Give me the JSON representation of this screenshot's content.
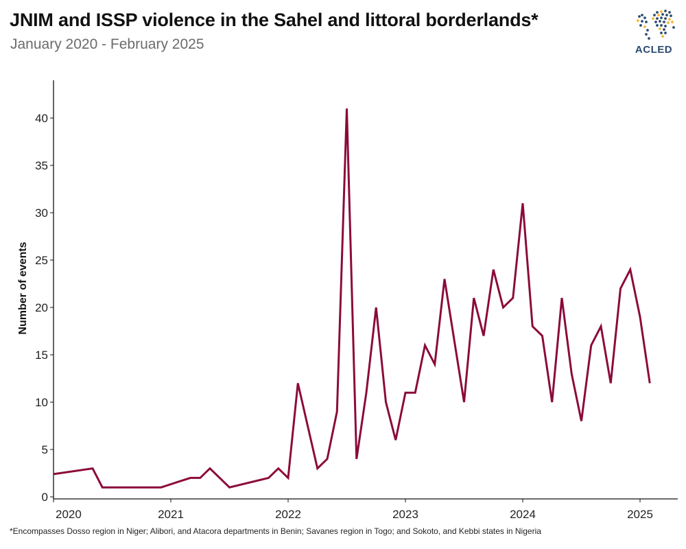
{
  "header": {
    "title": "JNIM and ISSP violence in the Sahel and littoral borderlands*",
    "subtitle": "January 2020 - February 2025"
  },
  "logo": {
    "text": "ACLED",
    "icon": "globe-dots-icon",
    "colors": {
      "primary": "#2b4a6f",
      "accent": "#f2b634"
    }
  },
  "footnote": "*Encompasses Dosso region in Niger; Alibori, and Atacora departments in Benin; Savanes region in Togo; and Sokoto, and Kebbi states in Nigeria",
  "chart_data": {
    "type": "line",
    "title": "JNIM and ISSP violence in the Sahel and littoral borderlands*",
    "subtitle": "January 2020 - February 2025",
    "xlabel": "",
    "ylabel": "Number of events",
    "ylim": [
      -1,
      43
    ],
    "xlim": [
      "2020-01",
      "2025-04"
    ],
    "grid": false,
    "line_color": "#8b0a3a",
    "x_ticks": [
      "2020",
      "2021",
      "2022",
      "2023",
      "2024",
      "2025"
    ],
    "y_ticks": [
      0,
      5,
      10,
      15,
      20,
      25,
      30,
      35,
      40
    ],
    "series": [
      {
        "name": "Number of events",
        "points": [
          {
            "x": "2020-01",
            "y": 2.4
          },
          {
            "x": "2020-05",
            "y": 3
          },
          {
            "x": "2020-06",
            "y": 1
          },
          {
            "x": "2020-12",
            "y": 1
          },
          {
            "x": "2021-03",
            "y": 2
          },
          {
            "x": "2021-04",
            "y": 2
          },
          {
            "x": "2021-05",
            "y": 3
          },
          {
            "x": "2021-07",
            "y": 1
          },
          {
            "x": "2021-11",
            "y": 2
          },
          {
            "x": "2021-12",
            "y": 3
          },
          {
            "x": "2022-01",
            "y": 2
          },
          {
            "x": "2022-02",
            "y": 12
          },
          {
            "x": "2022-04",
            "y": 3
          },
          {
            "x": "2022-05",
            "y": 4
          },
          {
            "x": "2022-06",
            "y": 9
          },
          {
            "x": "2022-07",
            "y": 41
          },
          {
            "x": "2022-08",
            "y": 4
          },
          {
            "x": "2022-09",
            "y": 11
          },
          {
            "x": "2022-10",
            "y": 20
          },
          {
            "x": "2022-11",
            "y": 10
          },
          {
            "x": "2022-12",
            "y": 6
          },
          {
            "x": "2023-01",
            "y": 11
          },
          {
            "x": "2023-02",
            "y": 11
          },
          {
            "x": "2023-03",
            "y": 16
          },
          {
            "x": "2023-04",
            "y": 14
          },
          {
            "x": "2023-05",
            "y": 23
          },
          {
            "x": "2023-07",
            "y": 10
          },
          {
            "x": "2023-08",
            "y": 21
          },
          {
            "x": "2023-09",
            "y": 17
          },
          {
            "x": "2023-10",
            "y": 24
          },
          {
            "x": "2023-11",
            "y": 20
          },
          {
            "x": "2023-12",
            "y": 21
          },
          {
            "x": "2024-01",
            "y": 31
          },
          {
            "x": "2024-02",
            "y": 18
          },
          {
            "x": "2024-03",
            "y": 17
          },
          {
            "x": "2024-04",
            "y": 10
          },
          {
            "x": "2024-05",
            "y": 21
          },
          {
            "x": "2024-06",
            "y": 13
          },
          {
            "x": "2024-07",
            "y": 8
          },
          {
            "x": "2024-08",
            "y": 16
          },
          {
            "x": "2024-09",
            "y": 18
          },
          {
            "x": "2024-10",
            "y": 12
          },
          {
            "x": "2024-11",
            "y": 22
          },
          {
            "x": "2024-12",
            "y": 24
          },
          {
            "x": "2025-01",
            "y": 19
          },
          {
            "x": "2025-02",
            "y": 12
          }
        ]
      }
    ],
    "footnote": "*Encompasses Dosso region in Niger; Alibori, and Atacora departments in Benin; Savanes region in Togo; and Sokoto, and Kebbi states in Nigeria"
  }
}
